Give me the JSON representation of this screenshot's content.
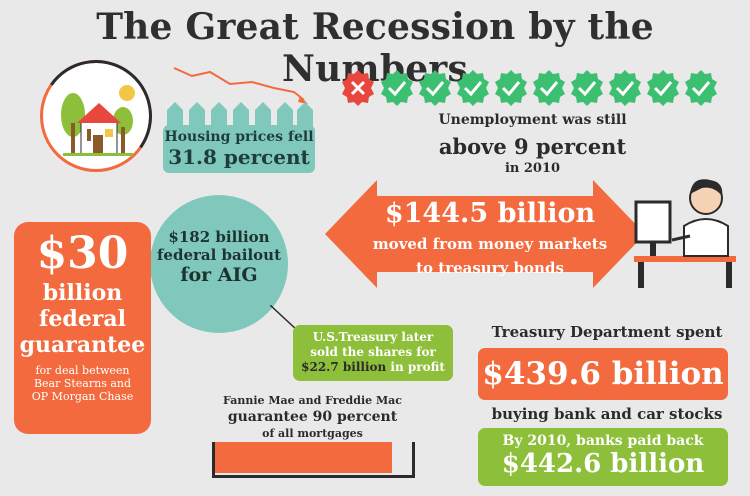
{
  "title": "The Great Recession by the Numbers",
  "colors": {
    "orange": "#f26a3d",
    "teal": "#7fc8bb",
    "green": "#8ebf3a",
    "dark": "#2b2b2b",
    "background": "#e9e9e9"
  },
  "housing": {
    "line1": "Housing prices fell",
    "line2": "31.8 percent"
  },
  "unemployment": {
    "line1": "Unemployment was still",
    "line2": "above 9 percent",
    "line3": "in 2010",
    "badges": [
      "x-badge-icon",
      "check-badge-icon",
      "check-badge-icon",
      "check-badge-icon",
      "check-badge-icon",
      "check-badge-icon",
      "check-badge-icon",
      "check-badge-icon",
      "check-badge-icon",
      "check-badge-icon"
    ]
  },
  "money_markets": {
    "amount": "$144.5 billion",
    "line2": "moved from money markets",
    "line3": "to treasury bonds"
  },
  "aig": {
    "line1": "$182 billion",
    "line2": "federal bailout",
    "line3": "for AIG"
  },
  "bear_stearns": {
    "amount": "$30",
    "line2": "billion",
    "line3": "federal",
    "line4": "guarantee",
    "small1": "for deal between",
    "small2": "Bear Stearns and",
    "small3": "OP Morgan Chase"
  },
  "treasury_shares": {
    "line1": "U.S.Treasury later",
    "line2": "sold the shares for",
    "amount": "$22.7 billion",
    "suffix": " in profit"
  },
  "fannie": {
    "line1": "Fannie Mae and Freddie Mac",
    "line2": "guarantee 90 percent",
    "line3": "of all mortgages",
    "fill_fraction": 0.9
  },
  "bank_stocks": {
    "line1": "Treasury Department spent",
    "amount": "$439.6 billion",
    "line2": "buying bank and car stocks"
  },
  "payback": {
    "line1": "By 2010, banks paid back",
    "amount": "$442.6 billion"
  }
}
